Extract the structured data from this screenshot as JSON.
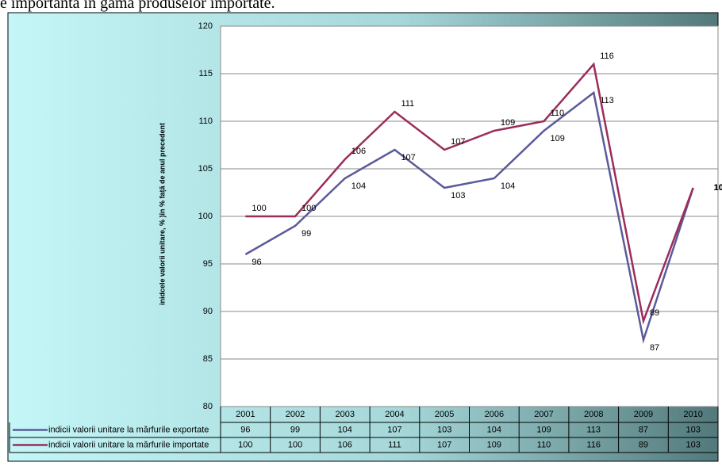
{
  "header_text": "e importanta în gama produselor importate.",
  "chart_data": {
    "type": "line",
    "y_axis_label": "inidcele valorii unitare, % )în % față de anul precedent",
    "categories": [
      "2001",
      "2002",
      "2003",
      "2004",
      "2005",
      "2006",
      "2007",
      "2008",
      "2009",
      "2010"
    ],
    "series": [
      {
        "name": "indicii valorii unitare la mărfurile exportate",
        "color": "#5b5b9b",
        "values": [
          96,
          99,
          104,
          107,
          103,
          104,
          109,
          113,
          87,
          103
        ]
      },
      {
        "name": "indicii valorii unitare la mărfurile importate",
        "color": "#9b2d5a",
        "values": [
          100,
          100,
          106,
          111,
          107,
          109,
          110,
          116,
          89,
          103
        ]
      }
    ],
    "ylim": [
      80,
      120
    ],
    "yticks": [
      80,
      85,
      90,
      95,
      100,
      105,
      110,
      115,
      120
    ],
    "grid": true
  }
}
